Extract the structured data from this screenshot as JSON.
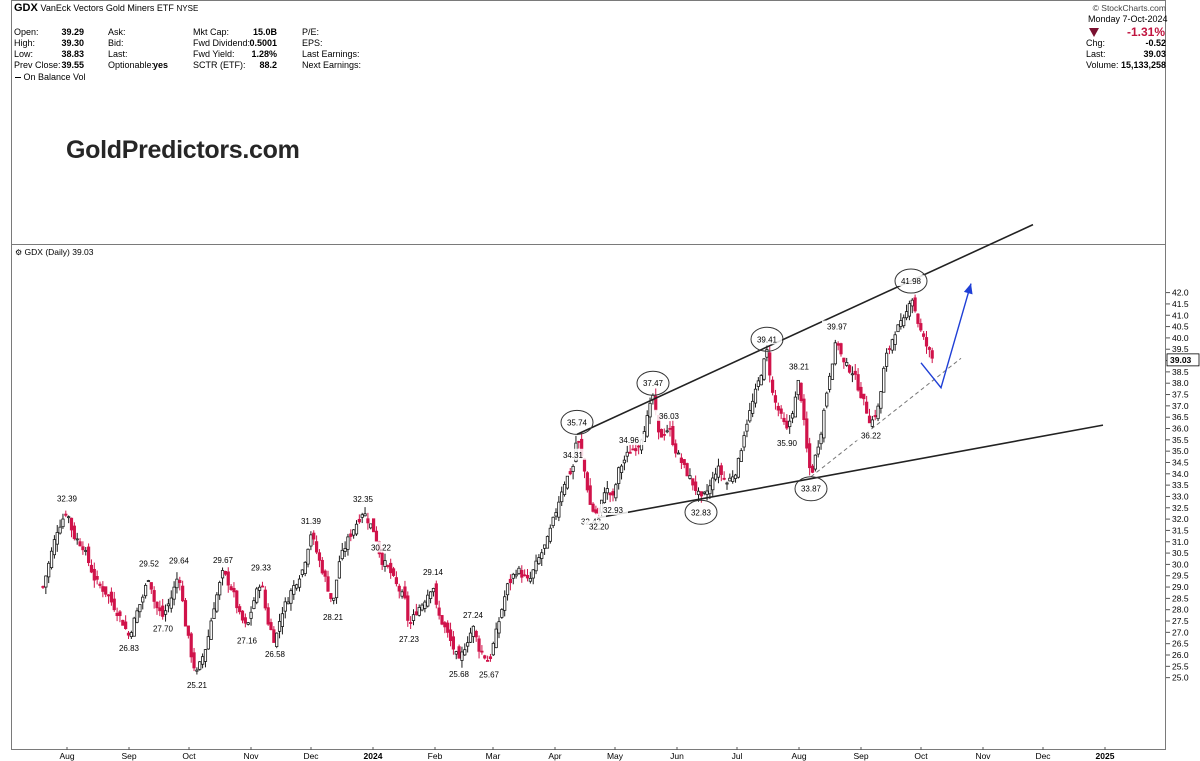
{
  "header": {
    "symbol": "GDX",
    "name": "VanEck Vectors Gold Miners ETF",
    "exchange": "NYSE",
    "source": "© StockCharts.com",
    "date": "Monday  7-Oct-2024",
    "fields_col1": [
      {
        "label": "Open:",
        "value": "39.29"
      },
      {
        "label": "High:",
        "value": "39.30"
      },
      {
        "label": "Low:",
        "value": "38.83"
      },
      {
        "label": "Prev Close:",
        "value": "39.55"
      }
    ],
    "fields_col2": [
      {
        "label": "Ask:",
        "value": ""
      },
      {
        "label": "Bid:",
        "value": ""
      },
      {
        "label": "Last:",
        "value": ""
      },
      {
        "label": "Optionable:",
        "value": "yes"
      }
    ],
    "fields_col3": [
      {
        "label": "Mkt Cap:",
        "value": "15.0B"
      },
      {
        "label": "Fwd Dividend:",
        "value": "0.5001"
      },
      {
        "label": "Fwd Yield:",
        "value": "1.28%"
      },
      {
        "label": "SCTR (ETF):",
        "value": "88.2"
      }
    ],
    "fields_col4": [
      {
        "label": "P/E:",
        "value": ""
      },
      {
        "label": "EPS:",
        "value": ""
      },
      {
        "label": "Last Earnings:",
        "value": ""
      },
      {
        "label": "Next Earnings:",
        "value": ""
      }
    ],
    "change_pct": "-1.31%",
    "change_arrow": "down-triangle-icon",
    "fields_right": [
      {
        "label": "Chg:",
        "value": "-0.52"
      },
      {
        "label": "Last:",
        "value": "39.03"
      },
      {
        "label": "Volume:",
        "value": "15,133,258"
      }
    ],
    "indicator_label": "On Balance Vol",
    "price_panel_label": "GDX (Daily) 39.03"
  },
  "watermark": "GoldPredictors.com",
  "colors": {
    "up": "#1a1a1a",
    "down": "#d0134a",
    "trend": "#222222",
    "projection": "#1f3fd6",
    "dashed": "#777777"
  },
  "chart_data": {
    "type": "candlestick",
    "series": "GDX daily price",
    "last": 39.03,
    "ylim": [
      24.5,
      42.5
    ],
    "y_ticks": [
      "25.0",
      "25.5",
      "26.0",
      "26.5",
      "27.0",
      "27.5",
      "28.0",
      "28.5",
      "29.0",
      "29.5",
      "30.0",
      "30.5",
      "31.0",
      "31.5",
      "32.0",
      "32.5",
      "33.0",
      "33.5",
      "34.0",
      "34.5",
      "35.0",
      "35.5",
      "36.0",
      "36.5",
      "37.0",
      "37.5",
      "38.0",
      "38.5",
      "39.0",
      "39.5",
      "40.0",
      "40.5",
      "41.0",
      "41.5",
      "42.0"
    ],
    "x_labels": [
      "Aug",
      "Sep",
      "Oct",
      "Nov",
      "Dec",
      "2024",
      "Feb",
      "Mar",
      "Apr",
      "May",
      "Jun",
      "Jul",
      "Aug",
      "Sep",
      "Oct",
      "Nov",
      "Dec",
      "2025"
    ],
    "price_path": [
      [
        "2023-07-20",
        29.0
      ],
      [
        "2023-07-27",
        31.5
      ],
      [
        "2023-08-01",
        32.39
      ],
      [
        "2023-08-04",
        31.3
      ],
      [
        "2023-08-09",
        30.8
      ],
      [
        "2023-08-15",
        29.3
      ],
      [
        "2023-08-21",
        28.7
      ],
      [
        "2023-08-28",
        27.6
      ],
      [
        "2023-09-01",
        26.83
      ],
      [
        "2023-09-05",
        27.9
      ],
      [
        "2023-09-08",
        28.6
      ],
      [
        "2023-09-11",
        29.52
      ],
      [
        "2023-09-14",
        28.2
      ],
      [
        "2023-09-18",
        27.7
      ],
      [
        "2023-09-22",
        28.5
      ],
      [
        "2023-09-26",
        29.64
      ],
      [
        "2023-09-29",
        27.5
      ],
      [
        "2023-10-03",
        25.6
      ],
      [
        "2023-10-05",
        25.21
      ],
      [
        "2023-10-10",
        26.5
      ],
      [
        "2023-10-13",
        28.0
      ],
      [
        "2023-10-18",
        29.67
      ],
      [
        "2023-10-23",
        28.8
      ],
      [
        "2023-10-26",
        27.8
      ],
      [
        "2023-10-30",
        27.16
      ],
      [
        "2023-11-02",
        28.3
      ],
      [
        "2023-11-06",
        29.33
      ],
      [
        "2023-11-09",
        27.6
      ],
      [
        "2023-11-13",
        26.58
      ],
      [
        "2023-11-16",
        27.8
      ],
      [
        "2023-11-21",
        28.8
      ],
      [
        "2023-11-27",
        29.8
      ],
      [
        "2023-12-01",
        31.39
      ],
      [
        "2023-12-05",
        30.2
      ],
      [
        "2023-12-08",
        29.4
      ],
      [
        "2023-12-12",
        28.21
      ],
      [
        "2023-12-15",
        30.1
      ],
      [
        "2023-12-20",
        31.2
      ],
      [
        "2023-12-27",
        32.35
      ],
      [
        "2024-01-02",
        31.4
      ],
      [
        "2024-01-05",
        30.22
      ],
      [
        "2024-01-09",
        29.8
      ],
      [
        "2024-01-12",
        29.2
      ],
      [
        "2024-01-17",
        28.4
      ],
      [
        "2024-01-19",
        27.23
      ],
      [
        "2024-01-23",
        28.0
      ],
      [
        "2024-01-26",
        28.3
      ],
      [
        "2024-01-31",
        29.14
      ],
      [
        "2024-02-02",
        27.9
      ],
      [
        "2024-02-07",
        27.0
      ],
      [
        "2024-02-13",
        25.68
      ],
      [
        "2024-02-16",
        26.4
      ],
      [
        "2024-02-20",
        27.24
      ],
      [
        "2024-02-23",
        26.3
      ],
      [
        "2024-02-28",
        25.67
      ],
      [
        "2024-03-04",
        27.5
      ],
      [
        "2024-03-08",
        29.0
      ],
      [
        "2024-03-13",
        29.8
      ],
      [
        "2024-03-19",
        29.2
      ],
      [
        "2024-03-22",
        29.9
      ],
      [
        "2024-03-28",
        31.0
      ],
      [
        "2024-04-01",
        32.2
      ],
      [
        "2024-04-05",
        33.5
      ],
      [
        "2024-04-10",
        34.3
      ],
      [
        "2024-04-12",
        35.74
      ],
      [
        "2024-04-16",
        34.0
      ],
      [
        "2024-04-19",
        32.43
      ],
      [
        "2024-04-23",
        32.2
      ],
      [
        "2024-04-26",
        33.4
      ],
      [
        "2024-04-30",
        32.93
      ],
      [
        "2024-05-03",
        34.2
      ],
      [
        "2024-05-08",
        34.96
      ],
      [
        "2024-05-13",
        35.3
      ],
      [
        "2024-05-17",
        36.4
      ],
      [
        "2024-05-20",
        37.47
      ],
      [
        "2024-05-23",
        35.6
      ],
      [
        "2024-05-28",
        36.03
      ],
      [
        "2024-05-31",
        35.1
      ],
      [
        "2024-06-05",
        34.2
      ],
      [
        "2024-06-10",
        33.4
      ],
      [
        "2024-06-13",
        32.83
      ],
      [
        "2024-06-18",
        33.5
      ],
      [
        "2024-06-21",
        34.3
      ],
      [
        "2024-06-26",
        33.6
      ],
      [
        "2024-07-01",
        34.2
      ],
      [
        "2024-07-05",
        36.0
      ],
      [
        "2024-07-10",
        37.5
      ],
      [
        "2024-07-16",
        39.41
      ],
      [
        "2024-07-19",
        37.4
      ],
      [
        "2024-07-24",
        36.3
      ],
      [
        "2024-07-26",
        35.9
      ],
      [
        "2024-07-30",
        37.2
      ],
      [
        "2024-08-01",
        38.21
      ],
      [
        "2024-08-05",
        35.0
      ],
      [
        "2024-08-07",
        33.87
      ],
      [
        "2024-08-12",
        35.9
      ],
      [
        "2024-08-16",
        38.3
      ],
      [
        "2024-08-20",
        39.97
      ],
      [
        "2024-08-23",
        38.9
      ],
      [
        "2024-08-28",
        38.5
      ],
      [
        "2024-09-03",
        37.0
      ],
      [
        "2024-09-06",
        36.22
      ],
      [
        "2024-09-10",
        37.0
      ],
      [
        "2024-09-13",
        39.0
      ],
      [
        "2024-09-18",
        40.3
      ],
      [
        "2024-09-23",
        40.8
      ],
      [
        "2024-09-26",
        41.98
      ],
      [
        "2024-09-30",
        40.5
      ],
      [
        "2024-10-03",
        39.8
      ],
      [
        "2024-10-07",
        39.03
      ]
    ],
    "annotations": [
      {
        "date": "2023-08-01",
        "price": 32.39,
        "text": "32.39",
        "pos": "above"
      },
      {
        "date": "2023-09-01",
        "price": 26.83,
        "text": "26.83",
        "pos": "below"
      },
      {
        "date": "2023-09-11",
        "price": 29.52,
        "text": "29.52",
        "pos": "above"
      },
      {
        "date": "2023-09-18",
        "price": 27.7,
        "text": "27.70",
        "pos": "below"
      },
      {
        "date": "2023-09-26",
        "price": 29.64,
        "text": "29.64",
        "pos": "above"
      },
      {
        "date": "2023-10-05",
        "price": 25.21,
        "text": "25.21",
        "pos": "below"
      },
      {
        "date": "2023-10-18",
        "price": 29.67,
        "text": "29.67",
        "pos": "above"
      },
      {
        "date": "2023-10-30",
        "price": 27.16,
        "text": "27.16",
        "pos": "below"
      },
      {
        "date": "2023-11-06",
        "price": 29.33,
        "text": "29.33",
        "pos": "above"
      },
      {
        "date": "2023-11-13",
        "price": 26.58,
        "text": "26.58",
        "pos": "below"
      },
      {
        "date": "2023-12-01",
        "price": 31.39,
        "text": "31.39",
        "pos": "above"
      },
      {
        "date": "2023-12-12",
        "price": 28.21,
        "text": "28.21",
        "pos": "below"
      },
      {
        "date": "2023-12-27",
        "price": 32.35,
        "text": "32.35",
        "pos": "above"
      },
      {
        "date": "2024-01-05",
        "price": 30.22,
        "text": "30.22",
        "pos": "above"
      },
      {
        "date": "2024-01-19",
        "price": 27.23,
        "text": "27.23",
        "pos": "below"
      },
      {
        "date": "2024-01-31",
        "price": 29.14,
        "text": "29.14",
        "pos": "above"
      },
      {
        "date": "2024-02-13",
        "price": 25.68,
        "text": "25.68",
        "pos": "below"
      },
      {
        "date": "2024-02-20",
        "price": 27.24,
        "text": "27.24",
        "pos": "above"
      },
      {
        "date": "2024-02-28",
        "price": 25.67,
        "text": "25.67",
        "pos": "below"
      },
      {
        "date": "2024-04-12",
        "price": 35.74,
        "text": "35.74",
        "pos": "above",
        "circle": true
      },
      {
        "date": "2024-04-10",
        "price": 34.31,
        "text": "34.31",
        "pos": "above"
      },
      {
        "date": "2024-04-19",
        "price": 32.43,
        "text": "32.43",
        "pos": "below"
      },
      {
        "date": "2024-04-23",
        "price": 32.2,
        "text": "32.20",
        "pos": "below"
      },
      {
        "date": "2024-04-30",
        "price": 32.93,
        "text": "32.93",
        "pos": "below"
      },
      {
        "date": "2024-05-08",
        "price": 34.96,
        "text": "34.96",
        "pos": "above"
      },
      {
        "date": "2024-05-20",
        "price": 37.47,
        "text": "37.47",
        "pos": "above",
        "circle": true
      },
      {
        "date": "2024-05-28",
        "price": 36.03,
        "text": "36.03",
        "pos": "above"
      },
      {
        "date": "2024-06-13",
        "price": 32.83,
        "text": "32.83",
        "pos": "below",
        "circle": true
      },
      {
        "date": "2024-07-16",
        "price": 39.41,
        "text": "39.41",
        "pos": "above",
        "circle": true
      },
      {
        "date": "2024-07-26",
        "price": 35.9,
        "text": "35.90",
        "pos": "below"
      },
      {
        "date": "2024-08-01",
        "price": 38.21,
        "text": "38.21",
        "pos": "above"
      },
      {
        "date": "2024-08-07",
        "price": 33.87,
        "text": "33.87",
        "pos": "below",
        "circle": true
      },
      {
        "date": "2024-08-20",
        "price": 39.97,
        "text": "39.97",
        "pos": "above"
      },
      {
        "date": "2024-09-06",
        "price": 36.22,
        "text": "36.22",
        "pos": "below"
      },
      {
        "date": "2024-09-26",
        "price": 41.98,
        "text": "41.98",
        "pos": "above",
        "circle": true
      }
    ],
    "trendlines": [
      {
        "name": "upper-channel-line",
        "style": "solid",
        "from": [
          "2024-04-12",
          35.74
        ],
        "to": [
          "2024-11-26",
          45.0
        ]
      },
      {
        "name": "lower-channel-line",
        "style": "solid",
        "from": [
          "2024-04-22",
          32.05
        ],
        "to": [
          "2024-12-31",
          36.15
        ]
      },
      {
        "name": "rising-support-line",
        "style": "dashed",
        "from": [
          "2024-08-07",
          33.87
        ],
        "to": [
          "2024-10-21",
          39.1
        ]
      }
    ],
    "projection": {
      "points": [
        [
          "2024-10-01",
          38.9
        ],
        [
          "2024-10-11",
          37.8
        ],
        [
          "2024-10-26",
          42.4
        ]
      ]
    }
  }
}
